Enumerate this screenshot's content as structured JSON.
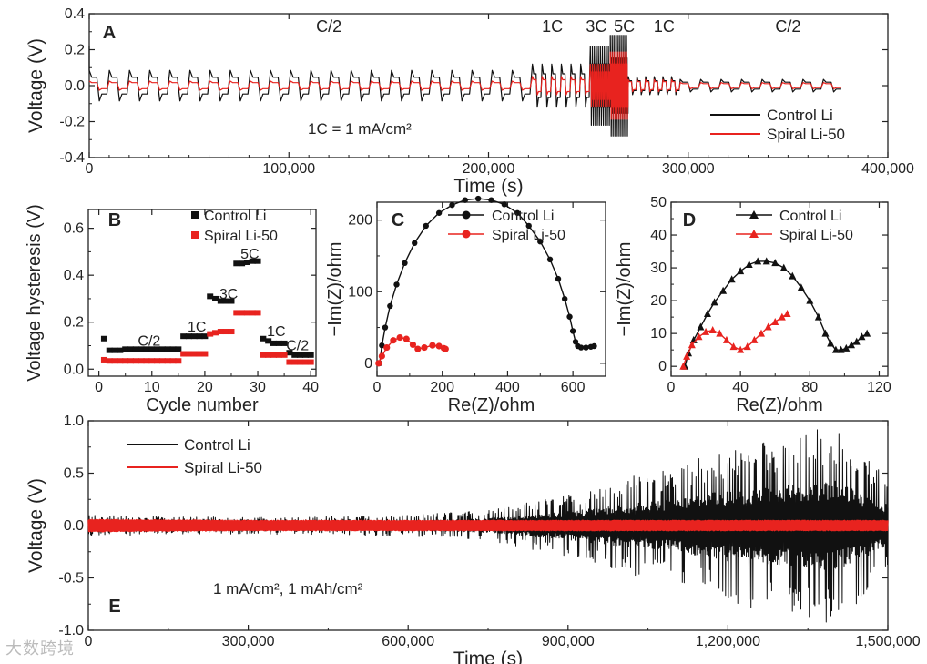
{
  "watermark": "大数跨境",
  "colors": {
    "control": "#111111",
    "spiral": "#e8231f",
    "axis": "#222222"
  },
  "chart_data": [
    {
      "panel": "A",
      "type": "line",
      "xlabel": "Time (s)",
      "ylabel": "Voltage (V)",
      "xlim": [
        0,
        400000
      ],
      "ylim": [
        -0.4,
        0.4
      ],
      "xticks": [
        0,
        100000,
        200000,
        300000,
        400000
      ],
      "xtick_labels": [
        "0",
        "100,000",
        "200,000",
        "300,000",
        "400,000"
      ],
      "yticks": [
        -0.4,
        -0.2,
        0.0,
        0.2,
        0.4
      ],
      "ytick_labels": [
        "-0.4",
        "-0.2",
        "0.0",
        "0.2",
        "0.4"
      ],
      "annotation": "1C = 1 mA/cm²",
      "legend": [
        "Control Li",
        "Spiral Li-50"
      ],
      "rate_labels": [
        {
          "text": "C/2",
          "x": 120000
        },
        {
          "text": "1C",
          "x": 232000
        },
        {
          "text": "3C",
          "x": 254000
        },
        {
          "text": "5C",
          "x": 268000
        },
        {
          "text": "1C",
          "x": 288000
        },
        {
          "text": "C/2",
          "x": 350000
        }
      ],
      "segments": [
        {
          "rate": "C/2",
          "start": 0,
          "end": 222000,
          "cycles": 22,
          "control_amp": 0.085,
          "spiral_amp": 0.03
        },
        {
          "rate": "1C",
          "start": 222000,
          "end": 251000,
          "cycles": 6,
          "control_amp": 0.12,
          "spiral_amp": 0.06
        },
        {
          "rate": "3C",
          "start": 251000,
          "end": 261000,
          "cycles": 10,
          "control_amp": 0.22,
          "spiral_amp": 0.14
        },
        {
          "rate": "5C",
          "start": 261000,
          "end": 270000,
          "cycles": 10,
          "control_amp": 0.28,
          "spiral_amp": 0.22
        },
        {
          "rate": "1C",
          "start": 270000,
          "end": 296000,
          "cycles": 6,
          "control_amp": 0.05,
          "spiral_amp": 0.04
        },
        {
          "rate": "C/2",
          "start": 296000,
          "end": 378000,
          "cycles": 8,
          "control_amp": 0.035,
          "spiral_amp": 0.02
        }
      ]
    },
    {
      "panel": "B",
      "type": "scatter",
      "xlabel": "Cycle number",
      "ylabel": "Voltage hysteresis (V)",
      "xlim": [
        -2,
        41
      ],
      "ylim": [
        -0.03,
        0.68
      ],
      "xticks": [
        0,
        10,
        20,
        30,
        40
      ],
      "yticks": [
        0.0,
        0.2,
        0.4,
        0.6
      ],
      "xtick_labels": [
        "0",
        "10",
        "20",
        "30",
        "40"
      ],
      "ytick_labels": [
        "0.0",
        "0.2",
        "0.4",
        "0.6"
      ],
      "legend": [
        "Control Li",
        "Spiral Li-50"
      ],
      "rate_labels": [
        {
          "text": "C/2",
          "x": 9.5,
          "y": 0.1
        },
        {
          "text": "1C",
          "x": 18.5,
          "y": 0.16
        },
        {
          "text": "3C",
          "x": 24.5,
          "y": 0.3
        },
        {
          "text": "5C",
          "x": 28.5,
          "y": 0.47
        },
        {
          "text": "1C",
          "x": 33.5,
          "y": 0.14
        },
        {
          "text": "C/2",
          "x": 37.5,
          "y": 0.08
        }
      ],
      "series": [
        {
          "name": "Control Li",
          "points": [
            [
              1,
              0.13
            ],
            [
              2,
              0.08
            ],
            [
              3,
              0.08
            ],
            [
              4,
              0.08
            ],
            [
              5,
              0.085
            ],
            [
              6,
              0.085
            ],
            [
              7,
              0.085
            ],
            [
              8,
              0.085
            ],
            [
              9,
              0.085
            ],
            [
              10,
              0.085
            ],
            [
              11,
              0.085
            ],
            [
              12,
              0.085
            ],
            [
              13,
              0.085
            ],
            [
              14,
              0.085
            ],
            [
              15,
              0.085
            ],
            [
              16,
              0.14
            ],
            [
              17,
              0.14
            ],
            [
              18,
              0.14
            ],
            [
              19,
              0.14
            ],
            [
              20,
              0.14
            ],
            [
              21,
              0.31
            ],
            [
              22,
              0.3
            ],
            [
              23,
              0.29
            ],
            [
              24,
              0.29
            ],
            [
              25,
              0.29
            ],
            [
              26,
              0.45
            ],
            [
              27,
              0.45
            ],
            [
              28,
              0.455
            ],
            [
              29,
              0.46
            ],
            [
              30,
              0.46
            ],
            [
              31,
              0.13
            ],
            [
              32,
              0.12
            ],
            [
              33,
              0.11
            ],
            [
              34,
              0.11
            ],
            [
              35,
              0.11
            ],
            [
              36,
              0.07
            ],
            [
              37,
              0.06
            ],
            [
              38,
              0.06
            ],
            [
              39,
              0.06
            ],
            [
              40,
              0.06
            ]
          ]
        },
        {
          "name": "Spiral Li-50",
          "points": [
            [
              1,
              0.04
            ],
            [
              2,
              0.035
            ],
            [
              3,
              0.035
            ],
            [
              4,
              0.035
            ],
            [
              5,
              0.035
            ],
            [
              6,
              0.035
            ],
            [
              7,
              0.035
            ],
            [
              8,
              0.035
            ],
            [
              9,
              0.035
            ],
            [
              10,
              0.035
            ],
            [
              11,
              0.035
            ],
            [
              12,
              0.035
            ],
            [
              13,
              0.035
            ],
            [
              14,
              0.035
            ],
            [
              15,
              0.035
            ],
            [
              16,
              0.065
            ],
            [
              17,
              0.065
            ],
            [
              18,
              0.065
            ],
            [
              19,
              0.065
            ],
            [
              20,
              0.065
            ],
            [
              21,
              0.15
            ],
            [
              22,
              0.155
            ],
            [
              23,
              0.16
            ],
            [
              24,
              0.16
            ],
            [
              25,
              0.16
            ],
            [
              26,
              0.24
            ],
            [
              27,
              0.24
            ],
            [
              28,
              0.24
            ],
            [
              29,
              0.24
            ],
            [
              30,
              0.24
            ],
            [
              31,
              0.06
            ],
            [
              32,
              0.06
            ],
            [
              33,
              0.06
            ],
            [
              34,
              0.06
            ],
            [
              35,
              0.06
            ],
            [
              36,
              0.03
            ],
            [
              37,
              0.03
            ],
            [
              38,
              0.03
            ],
            [
              39,
              0.03
            ],
            [
              40,
              0.03
            ]
          ]
        }
      ]
    },
    {
      "panel": "C",
      "type": "line",
      "xlabel": "Re(Z)/ohm",
      "ylabel": "−Im(Z)/ohm",
      "xlim": [
        0,
        700
      ],
      "ylim": [
        -18,
        225
      ],
      "xticks": [
        0,
        200,
        400,
        600
      ],
      "yticks": [
        0,
        100,
        200
      ],
      "xtick_labels": [
        "0",
        "200",
        "400",
        "600"
      ],
      "ytick_labels": [
        "0",
        "100",
        "200"
      ],
      "legend": [
        "Control Li",
        "Spiral Li-50"
      ],
      "series": [
        {
          "name": "Control Li",
          "points": [
            [
              8,
              0
            ],
            [
              15,
              25
            ],
            [
              25,
              50
            ],
            [
              40,
              80
            ],
            [
              60,
              110
            ],
            [
              85,
              140
            ],
            [
              115,
              168
            ],
            [
              150,
              192
            ],
            [
              190,
              210
            ],
            [
              230,
              221
            ],
            [
              270,
              228
            ],
            [
              310,
              230
            ],
            [
              350,
              228
            ],
            [
              390,
              222
            ],
            [
              430,
              210
            ],
            [
              465,
              192
            ],
            [
              500,
              170
            ],
            [
              530,
              145
            ],
            [
              555,
              118
            ],
            [
              575,
              90
            ],
            [
              590,
              65
            ],
            [
              600,
              45
            ],
            [
              608,
              30
            ],
            [
              615,
              24
            ],
            [
              625,
              22
            ],
            [
              640,
              22
            ],
            [
              655,
              23
            ],
            [
              665,
              24
            ]
          ]
        },
        {
          "name": "Spiral Li-50",
          "points": [
            [
              5,
              0
            ],
            [
              15,
              10
            ],
            [
              30,
              22
            ],
            [
              50,
              32
            ],
            [
              70,
              36
            ],
            [
              90,
              34
            ],
            [
              110,
              26
            ],
            [
              125,
              20
            ],
            [
              145,
              22
            ],
            [
              170,
              25
            ],
            [
              190,
              24
            ],
            [
              205,
              21
            ],
            [
              210,
              20
            ]
          ]
        }
      ]
    },
    {
      "panel": "D",
      "type": "line",
      "xlabel": "Re(Z)/ohm",
      "ylabel": "−Im(Z)/ohm",
      "xlim": [
        0,
        125
      ],
      "ylim": [
        -3,
        50
      ],
      "xticks": [
        0,
        40,
        80,
        120
      ],
      "yticks": [
        0,
        10,
        20,
        30,
        40,
        50
      ],
      "xtick_labels": [
        "0",
        "40",
        "80",
        "120"
      ],
      "ytick_labels": [
        "0",
        "10",
        "20",
        "30",
        "40",
        "50"
      ],
      "legend": [
        "Control Li",
        "Spiral Li-50"
      ],
      "series": [
        {
          "name": "Control Li",
          "points": [
            [
              8,
              0
            ],
            [
              10,
              4
            ],
            [
              13,
              8
            ],
            [
              17,
              12
            ],
            [
              21,
              16
            ],
            [
              25,
              19.5
            ],
            [
              30,
              23
            ],
            [
              35,
              26.5
            ],
            [
              40,
              29
            ],
            [
              45,
              31
            ],
            [
              50,
              32
            ],
            [
              55,
              32
            ],
            [
              60,
              31.5
            ],
            [
              65,
              30
            ],
            [
              70,
              27.5
            ],
            [
              75,
              24
            ],
            [
              80,
              20
            ],
            [
              85,
              15
            ],
            [
              89,
              10
            ],
            [
              92,
              7
            ],
            [
              95,
              5
            ],
            [
              98,
              5
            ],
            [
              101,
              5.5
            ],
            [
              104,
              6.5
            ],
            [
              107,
              7.5
            ],
            [
              110,
              9
            ],
            [
              113,
              10
            ]
          ]
        },
        {
          "name": "Spiral Li-50",
          "points": [
            [
              7,
              0
            ],
            [
              9,
              3
            ],
            [
              12,
              6.5
            ],
            [
              16,
              9
            ],
            [
              20,
              10.5
            ],
            [
              24,
              11
            ],
            [
              28,
              10
            ],
            [
              32,
              8
            ],
            [
              36,
              6
            ],
            [
              40,
              5
            ],
            [
              44,
              6
            ],
            [
              48,
              8
            ],
            [
              52,
              10
            ],
            [
              56,
              12
            ],
            [
              60,
              13.5
            ],
            [
              64,
              15
            ],
            [
              67,
              16
            ]
          ]
        }
      ]
    },
    {
      "panel": "E",
      "type": "line",
      "xlabel": "Time (s)",
      "ylabel": "Voltage (V)",
      "xlim": [
        0,
        1500000
      ],
      "ylim": [
        -1.0,
        1.0
      ],
      "xticks": [
        0,
        300000,
        600000,
        900000,
        1200000,
        1500000
      ],
      "xtick_labels": [
        "0",
        "300,000",
        "600,000",
        "900,000",
        "1,200,000",
        "1,500,000"
      ],
      "yticks": [
        -1.0,
        -0.5,
        0.0,
        0.5,
        1.0
      ],
      "ytick_labels": [
        "-1.0",
        "-0.5",
        "0.0",
        "0.5",
        "1.0"
      ],
      "annotation": "1 mA/cm², 1 mAh/cm²",
      "legend": [
        "Control Li",
        "Spiral Li-50"
      ],
      "envelope": {
        "time": [
          0,
          300000,
          600000,
          750000,
          900000,
          1000000,
          1100000,
          1200000,
          1300000,
          1400000,
          1500000
        ],
        "control_amp": [
          0.1,
          0.08,
          0.1,
          0.15,
          0.3,
          0.45,
          0.55,
          0.75,
          0.85,
          0.95,
          0.45
        ],
        "spiral_amp": [
          0.06,
          0.05,
          0.05,
          0.05,
          0.05,
          0.05,
          0.05,
          0.05,
          0.05,
          0.05,
          0.05
        ]
      }
    }
  ]
}
